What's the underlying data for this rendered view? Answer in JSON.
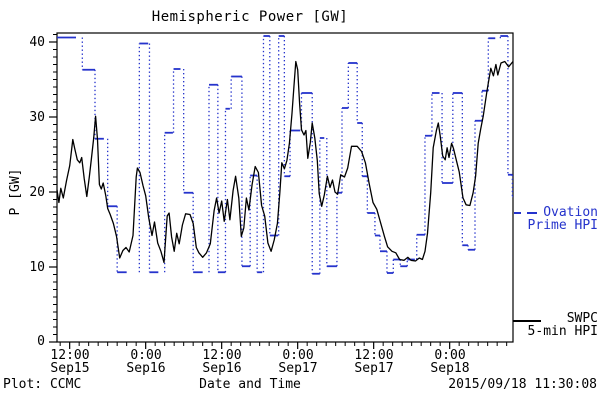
{
  "title": "Hemispheric Power [GW]",
  "y_axis_label": "P [GW]",
  "footer": {
    "source": "Plot: CCMC",
    "x_axis_title": "Date and Time",
    "timestamp": "2015/09/18 11:30:08"
  },
  "legend": {
    "ovation": {
      "line1": "Ovation",
      "line2": "Prime HPI"
    },
    "swpc": {
      "line1": "SWPC",
      "line2": "5-min HPI"
    }
  },
  "colors": {
    "ovation_blue": "#2533cc",
    "swpc_black": "#000000",
    "axis": "#000000",
    "background": "#ffffff"
  },
  "chart_data": {
    "type": "line",
    "title": "Hemispheric Power [GW]",
    "xlabel": "Date and Time",
    "ylabel": "P [GW]",
    "ylim": [
      0,
      41.2
    ],
    "x_domain_hours": [
      0,
      72.3
    ],
    "y_major_ticks": [
      0,
      10,
      20,
      30,
      40
    ],
    "y_minor_step": 1,
    "x_minor_step": 1.5,
    "x_ticks": [
      {
        "h": 2,
        "time": "12:00",
        "date": "Sep15"
      },
      {
        "h": 14,
        "time": "0:00",
        "date": "Sep16"
      },
      {
        "h": 26,
        "time": "12:00",
        "date": "Sep16"
      },
      {
        "h": 38,
        "time": "0:00",
        "date": "Sep17"
      },
      {
        "h": 50,
        "time": "12:00",
        "date": "Sep17"
      },
      {
        "h": 62,
        "time": "0:00",
        "date": "Sep18"
      }
    ],
    "series": [
      {
        "name": "Ovation Prime HPI",
        "type": "steps",
        "color": "#2533cc",
        "units": "GW",
        "style": "horizontal dashes with dotted vertical connectors",
        "steps": [
          [
            0,
            3,
            40.6
          ],
          [
            4,
            6,
            36.3
          ],
          [
            6,
            7.4,
            27.1
          ],
          [
            8,
            9.5,
            18.1
          ],
          [
            9.5,
            11,
            9.3
          ],
          [
            13,
            14.4,
            39.8
          ],
          [
            14.6,
            16,
            9.3
          ],
          [
            17,
            18.3,
            27.9
          ],
          [
            18.4,
            19.5,
            36.4
          ],
          [
            20,
            21.5,
            19.9
          ],
          [
            21.5,
            23,
            9.3
          ],
          [
            24,
            25.4,
            34.3
          ],
          [
            25.4,
            26.6,
            9.3
          ],
          [
            26.6,
            27.3,
            31.1
          ],
          [
            27.5,
            29.2,
            35.4
          ],
          [
            29.2,
            30.5,
            10.1
          ],
          [
            30.5,
            31.6,
            22.2
          ],
          [
            31.6,
            32.4,
            9.3
          ],
          [
            32.6,
            33.6,
            40.8
          ],
          [
            33.6,
            34.9,
            14.2
          ],
          [
            35,
            35.9,
            40.8
          ],
          [
            35.9,
            36.8,
            22.1
          ],
          [
            36.8,
            38.4,
            28.2
          ],
          [
            38.6,
            40.3,
            33.2
          ],
          [
            40.3,
            41.5,
            9.1
          ],
          [
            41.5,
            42.2,
            27.2
          ],
          [
            42.6,
            44.2,
            10.1
          ],
          [
            44.2,
            45,
            19.9
          ],
          [
            45,
            46,
            31.2
          ],
          [
            46,
            47.4,
            37.2
          ],
          [
            47.4,
            48.2,
            29.2
          ],
          [
            48.2,
            49,
            22.1
          ],
          [
            49,
            50.2,
            17.2
          ],
          [
            50.2,
            51,
            14.2
          ],
          [
            51,
            52.1,
            12.1
          ],
          [
            52.1,
            53.1,
            9.2
          ],
          [
            53.1,
            54.2,
            11
          ],
          [
            54.2,
            55.3,
            10.1
          ],
          [
            55.3,
            56.5,
            11
          ],
          [
            56.8,
            58.1,
            14.3
          ],
          [
            58.1,
            59.2,
            27.5
          ],
          [
            59.2,
            60.4,
            33.2
          ],
          [
            60.8,
            62.5,
            21.2
          ],
          [
            62.5,
            64,
            33.2
          ],
          [
            64,
            64.9,
            12.9
          ],
          [
            64.9,
            66,
            12.3
          ],
          [
            66,
            67.1,
            29.5
          ],
          [
            67.1,
            68.1,
            33.5
          ],
          [
            68.1,
            69.2,
            40.5
          ],
          [
            70,
            71.2,
            40.8
          ],
          [
            71.2,
            71.9,
            22.3
          ],
          [
            71.9,
            72.3,
            19.4
          ]
        ]
      },
      {
        "name": "SWPC 5-min HPI",
        "type": "line",
        "color": "#000000",
        "units": "GW",
        "points": [
          [
            0,
            20.3
          ],
          [
            0.3,
            18.6
          ],
          [
            0.6,
            20.5
          ],
          [
            1,
            19.2
          ],
          [
            1.5,
            21.5
          ],
          [
            2,
            23.5
          ],
          [
            2.5,
            27
          ],
          [
            2.8,
            25.8
          ],
          [
            3.2,
            24.3
          ],
          [
            3.6,
            23.9
          ],
          [
            3.9,
            24.6
          ],
          [
            4.3,
            21.8
          ],
          [
            4.7,
            19.4
          ],
          [
            5.1,
            22
          ],
          [
            5.4,
            24.2
          ],
          [
            5.8,
            27.2
          ],
          [
            6.1,
            30.1
          ],
          [
            6.4,
            27
          ],
          [
            6.7,
            21
          ],
          [
            7,
            20.4
          ],
          [
            7.3,
            21.2
          ],
          [
            7.7,
            19.5
          ],
          [
            8,
            17.8
          ],
          [
            8.4,
            17
          ],
          [
            8.9,
            15.8
          ],
          [
            9.4,
            14.1
          ],
          [
            9.9,
            11.2
          ],
          [
            10.4,
            12.2
          ],
          [
            10.9,
            12.6
          ],
          [
            11.4,
            12
          ],
          [
            12,
            14.2
          ],
          [
            12.5,
            22
          ],
          [
            12.7,
            23.2
          ],
          [
            13.1,
            22.6
          ],
          [
            13.6,
            20.8
          ],
          [
            14,
            19.5
          ],
          [
            14.5,
            16.5
          ],
          [
            15,
            14.2
          ],
          [
            15.4,
            16
          ],
          [
            15.9,
            13.2
          ],
          [
            16.4,
            12.1
          ],
          [
            16.9,
            10.6
          ],
          [
            17.4,
            16.8
          ],
          [
            17.7,
            17.2
          ],
          [
            18.1,
            14
          ],
          [
            18.5,
            12.1
          ],
          [
            18.9,
            14.5
          ],
          [
            19.3,
            13.1
          ],
          [
            19.8,
            15.6
          ],
          [
            20.3,
            17.1
          ],
          [
            21,
            17
          ],
          [
            21.5,
            15.8
          ],
          [
            22,
            12.6
          ],
          [
            22.4,
            11.9
          ],
          [
            23,
            11.3
          ],
          [
            23.6,
            11.9
          ],
          [
            24.2,
            13.1
          ],
          [
            24.8,
            17.5
          ],
          [
            25.2,
            19.2
          ],
          [
            25.6,
            17.2
          ],
          [
            26,
            18.8
          ],
          [
            26.4,
            16.1
          ],
          [
            26.9,
            19
          ],
          [
            27.3,
            16.3
          ],
          [
            27.8,
            20.2
          ],
          [
            28.2,
            22.1
          ],
          [
            28.7,
            19.2
          ],
          [
            29.1,
            14.1
          ],
          [
            29.5,
            15.2
          ],
          [
            29.9,
            19.2
          ],
          [
            30.3,
            17.6
          ],
          [
            30.8,
            21
          ],
          [
            31.3,
            23.4
          ],
          [
            31.8,
            22.6
          ],
          [
            32.3,
            18.2
          ],
          [
            32.8,
            16.8
          ],
          [
            33.3,
            13.2
          ],
          [
            33.8,
            12.1
          ],
          [
            34.3,
            13.6
          ],
          [
            34.8,
            15.8
          ],
          [
            35.2,
            20
          ],
          [
            35.5,
            23.9
          ],
          [
            35.9,
            23.1
          ],
          [
            36.3,
            24.2
          ],
          [
            36.7,
            26.5
          ],
          [
            37.1,
            30.5
          ],
          [
            37.4,
            34
          ],
          [
            37.7,
            37.4
          ],
          [
            38,
            36.3
          ],
          [
            38.3,
            31.8
          ],
          [
            38.6,
            28.3
          ],
          [
            39,
            27.6
          ],
          [
            39.3,
            28.2
          ],
          [
            39.6,
            24.5
          ],
          [
            40,
            26.6
          ],
          [
            40.3,
            29.2
          ],
          [
            40.7,
            27.2
          ],
          [
            41.1,
            24.2
          ],
          [
            41.4,
            19.8
          ],
          [
            41.8,
            18.1
          ],
          [
            42.2,
            19.6
          ],
          [
            42.7,
            22.1
          ],
          [
            43.1,
            20.6
          ],
          [
            43.5,
            21.6
          ],
          [
            43.9,
            20
          ],
          [
            44.3,
            19.7
          ],
          [
            44.8,
            22.3
          ],
          [
            45.4,
            22
          ],
          [
            45.9,
            23.2
          ],
          [
            46.5,
            26.1
          ],
          [
            47.4,
            26.1
          ],
          [
            48.1,
            25.4
          ],
          [
            48.7,
            23.9
          ],
          [
            49.3,
            21.1
          ],
          [
            49.9,
            18.6
          ],
          [
            50.5,
            17.7
          ],
          [
            51.1,
            15.9
          ],
          [
            51.7,
            14.1
          ],
          [
            52.2,
            12.7
          ],
          [
            52.9,
            12.1
          ],
          [
            53.5,
            11.9
          ],
          [
            54.1,
            11
          ],
          [
            54.8,
            10.9
          ],
          [
            55.4,
            11.3
          ],
          [
            55.9,
            10.9
          ],
          [
            56.6,
            10.8
          ],
          [
            57.2,
            11.2
          ],
          [
            57.7,
            11
          ],
          [
            58.1,
            12.1
          ],
          [
            58.5,
            14.5
          ],
          [
            59,
            19.9
          ],
          [
            59.4,
            25.9
          ],
          [
            59.9,
            28.2
          ],
          [
            60.2,
            29.2
          ],
          [
            60.5,
            27.5
          ],
          [
            60.9,
            24.8
          ],
          [
            61.3,
            24.3
          ],
          [
            61.6,
            25.9
          ],
          [
            61.9,
            24.6
          ],
          [
            62.3,
            26.5
          ],
          [
            62.6,
            25.8
          ],
          [
            63.1,
            24.1
          ],
          [
            63.5,
            22.7
          ],
          [
            64.1,
            19.2
          ],
          [
            64.6,
            18.3
          ],
          [
            65.2,
            18.2
          ],
          [
            65.7,
            19.9
          ],
          [
            66.1,
            22.1
          ],
          [
            66.5,
            26.5
          ],
          [
            66.9,
            28.4
          ],
          [
            67.3,
            30.1
          ],
          [
            67.9,
            33.5
          ],
          [
            68.5,
            36.5
          ],
          [
            68.9,
            35.5
          ],
          [
            69.3,
            37
          ],
          [
            69.6,
            35.6
          ],
          [
            70.1,
            37.2
          ],
          [
            70.7,
            37.4
          ],
          [
            71.3,
            36.7
          ],
          [
            72,
            37.4
          ]
        ]
      }
    ]
  }
}
